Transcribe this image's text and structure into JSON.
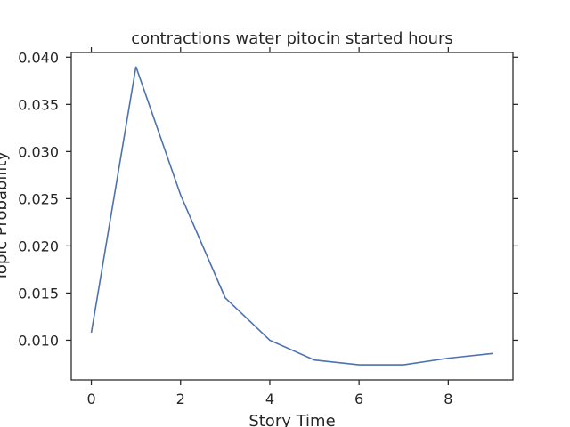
{
  "chart_data": {
    "type": "line",
    "title": "contractions water pitocin started hours",
    "xlabel": "Story Time",
    "ylabel": "Topic Probability",
    "x": [
      0,
      1,
      2,
      3,
      4,
      5,
      6,
      7,
      8,
      9
    ],
    "series": [
      {
        "values": [
          0.0108,
          0.039,
          0.0254,
          0.0145,
          0.01,
          0.0079,
          0.0074,
          0.0074,
          0.0081,
          0.0086
        ]
      }
    ],
    "xlim": [
      -0.45,
      9.45
    ],
    "ylim": [
      0.0058,
      0.0405
    ],
    "xticks": [
      0,
      2,
      4,
      6,
      8
    ],
    "yticks": [
      0.01,
      0.015,
      0.02,
      0.025,
      0.03,
      0.035,
      0.04
    ],
    "xtick_labels": [
      "0",
      "2",
      "4",
      "6",
      "8"
    ],
    "ytick_labels": [
      "0.010",
      "0.015",
      "0.020",
      "0.025",
      "0.030",
      "0.035",
      "0.040"
    ],
    "grid": false,
    "colors": {
      "line": "#4c72b0",
      "axes": "#262626",
      "text": "#262626"
    }
  }
}
